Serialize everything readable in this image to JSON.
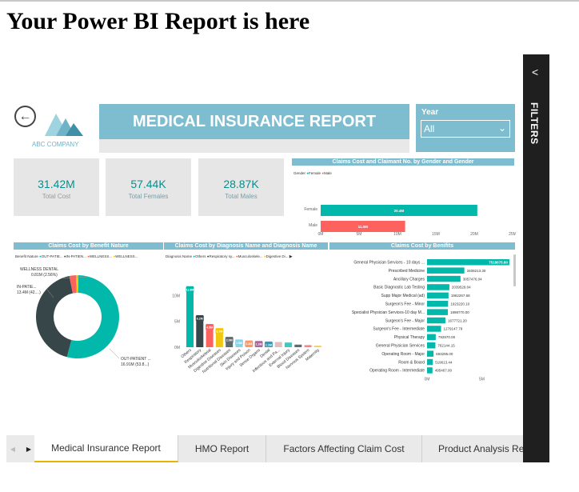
{
  "heading": "Your Power BI Report is here",
  "header": {
    "company": "ABC COMPANY",
    "title": "MEDICAL INSURANCE REPORT",
    "year_label": "Year",
    "year_value": "All"
  },
  "kpis": [
    {
      "value": "31.42M",
      "label": "Total Cost"
    },
    {
      "value": "57.44K",
      "label": "Total Females"
    },
    {
      "value": "28.87K",
      "label": "Total Males"
    }
  ],
  "filters_label": "FILTERS",
  "colors": {
    "teal": "#01b8aa",
    "dark": "#374649",
    "red": "#fd625e",
    "yellow": "#f2c80f",
    "gray": "#5f6b6d",
    "banner": "#7ebdcf"
  },
  "chart_data": [
    {
      "type": "bar",
      "title": "Claims Cost and Claimant No. by Gender and Gender",
      "legend_title": "Gender",
      "legend": [
        "Female",
        "Male"
      ],
      "categories": [
        "Female",
        "Male"
      ],
      "values": [
        20.4,
        11.0
      ],
      "data_labels": [
        "20.4M",
        "11.0M"
      ],
      "x_ticks": [
        "0M",
        "5M",
        "10M",
        "15M",
        "20M",
        "25M"
      ],
      "xlim": [
        0,
        25
      ]
    },
    {
      "type": "pie",
      "title": "Claims Cost by Benefit Nature",
      "legend_title": "Benefit Nature",
      "legend": [
        "OUT-PATIE...",
        "IN-PATIEN...",
        "WELLNESS...",
        "WELLNESS..."
      ],
      "slices": [
        {
          "name": "OUT-PATIENT",
          "value": 16.91,
          "label_line1": "OUT-PATIENT ...",
          "label_line2": "16.91M (53.8...)"
        },
        {
          "name": "IN-PATIENT",
          "value": 13.4,
          "label_line1": "IN-PATIE...",
          "label_line2": "13.4M (42....)"
        },
        {
          "name": "WELLNESS DENTAL",
          "value": 0.81,
          "label_line1": "WELLNESS DENTAL",
          "label_line2": "0.81M (2.56%)"
        },
        {
          "name": "WELLNESS",
          "value": 0.3,
          "label_line1": "",
          "label_line2": ""
        }
      ]
    },
    {
      "type": "bar",
      "title": "Claims Cost by Diagnosis Name and Diagnosis Name",
      "legend_title": "Diagnosis Name",
      "legend": [
        "Others",
        "Respiratory sy...",
        "Musculoskele...",
        "Digestive Di..."
      ],
      "categories": [
        "Others",
        "Respiratory",
        "Musculoskeletal",
        "Digestive Diseases",
        "Nutritional Diseases",
        "Skin Diseases",
        "Injury and Poison",
        "Sense Organs",
        "Dental",
        "Infectious and Pa...",
        "External Injury",
        "Blood Diseases",
        "Nervous System",
        "Maternity"
      ],
      "values": [
        11.8,
        6.2,
        4.5,
        3.7,
        2.0,
        1.5,
        1.3,
        1.2,
        1.1,
        1.0,
        0.9,
        0.5,
        0.4,
        0.3
      ],
      "data_labels": [
        "11.8M",
        "6.2M",
        "4.5M",
        "3.7M",
        "2.0M",
        "1.5M",
        "1.3M",
        "1.2M",
        "1.1M",
        "",
        "",
        "",
        "",
        ""
      ],
      "y_ticks": [
        "10M",
        "5M",
        "0M"
      ],
      "ylim": [
        0,
        13
      ]
    },
    {
      "type": "bar",
      "title": "Claims Cost by Benifits",
      "categories": [
        "General Physician Services - 10 days ...",
        "Prescribed Medicine",
        "Ancillary Charges",
        "Basic Diagnostic Lab Testing",
        "Supp Major Medical (ad)",
        "Surgeon's Fee - Minor",
        "Specialist Physician Services-10 day M...",
        "Surgeon's Fee - Major",
        "Surgeon's Fee - Intermediate",
        "Physical Therapy",
        "General Physician Services",
        "Operating Room - Major",
        "Room & Board",
        "Operating Room - Intermediate"
      ],
      "values": [
        7518675.8,
        3408213.3,
        3057476.04,
        2039529.04,
        1962267.68,
        1923220.1,
        1898770,
        1677721.2,
        1279147.79,
        792970,
        762144.15,
        593295,
        519613.44,
        495467
      ],
      "data_labels": [
        "7518675.80",
        "3408213.30",
        "3057476.04",
        "2039529.04",
        "1962267.68",
        "1923220.10",
        "1898770.00",
        "1677721.20",
        "1279147.79",
        "792970.00",
        "762144.15",
        "593295.00",
        "519613.44",
        "495467.00"
      ],
      "x_ticks": [
        "0M",
        "5M"
      ],
      "xlim": [
        0,
        7.6
      ]
    }
  ],
  "tabs": [
    {
      "label": "Medical Insurance Report",
      "active": true
    },
    {
      "label": "HMO Report",
      "active": false
    },
    {
      "label": "Factors Affecting Claim Cost",
      "active": false
    },
    {
      "label": "Product Analysis Report",
      "active": false
    }
  ],
  "tab_nav": {
    "prev": "◀",
    "next": "▶"
  }
}
